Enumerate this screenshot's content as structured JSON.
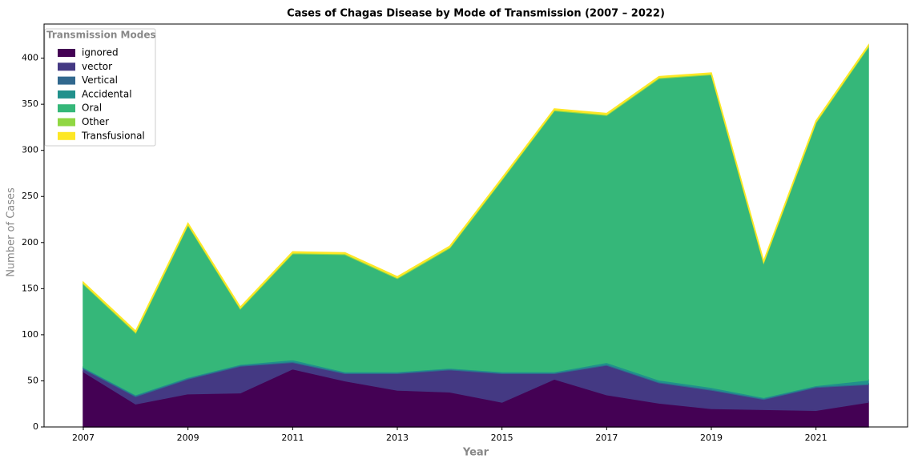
{
  "chart_data": {
    "type": "stacked_area",
    "title": "Cases of Chagas Disease by Mode of Transmission (2007 – 2022)",
    "x_label": "Year",
    "y_label": "Number of Cases",
    "legend_title": "Transmission Modes",
    "legend": "upper left",
    "x": [
      2007,
      2008,
      2009,
      2010,
      2011,
      2012,
      2013,
      2014,
      2015,
      2016,
      2017,
      2018,
      2019,
      2020,
      2021,
      2022
    ],
    "series": [
      {
        "name": "ignored",
        "color": "#440154",
        "values": [
          60,
          25,
          36,
          37,
          63,
          50,
          40,
          38,
          27,
          52,
          35,
          26,
          20,
          19,
          18,
          27
        ]
      },
      {
        "name": "vector",
        "color": "#443983",
        "values": [
          3,
          8,
          16,
          29,
          7,
          8,
          18,
          24,
          31,
          6,
          32,
          22,
          20,
          11,
          25,
          19
        ]
      },
      {
        "name": "Vertical",
        "color": "#31688e",
        "values": [
          1,
          1,
          1,
          1,
          1,
          1,
          1,
          1,
          1,
          1,
          1,
          1,
          1,
          1,
          1,
          1
        ]
      },
      {
        "name": "Accidental",
        "color": "#21918c",
        "values": [
          1,
          1,
          1,
          1,
          2,
          1,
          1,
          1,
          1,
          1,
          2,
          2,
          2,
          1,
          1,
          4
        ]
      },
      {
        "name": "Oral",
        "color": "#35b779",
        "values": [
          90,
          67,
          165,
          60,
          115,
          127,
          101,
          130,
          208,
          283,
          268,
          327,
          339,
          146,
          285,
          361
        ]
      },
      {
        "name": "Other",
        "color": "#90d743",
        "values": [
          1,
          1,
          1,
          1,
          1,
          1,
          1,
          1,
          1,
          1,
          1,
          1,
          1,
          1,
          1,
          1
        ]
      },
      {
        "name": "Transfusional",
        "color": "#fde725",
        "values": [
          1,
          1,
          1,
          1,
          1,
          1,
          1,
          1,
          1,
          1,
          1,
          1,
          1,
          1,
          1,
          1
        ]
      }
    ],
    "xlim": [
      2006.25,
      2022.75
    ],
    "xticks": [
      2007,
      2009,
      2011,
      2013,
      2015,
      2017,
      2019,
      2021
    ],
    "ylim": [
      0,
      437
    ],
    "yticks": [
      0,
      50,
      100,
      150,
      200,
      250,
      300,
      350,
      400
    ]
  }
}
